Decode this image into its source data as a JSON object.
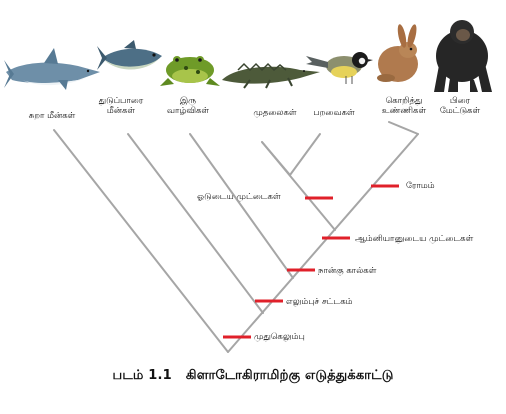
{
  "diagram": {
    "taxa": [
      {
        "id": "shark",
        "label": "சுறா மீன்கள்",
        "icon": "shark-icon"
      },
      {
        "id": "tuna",
        "label": "துடுப்பாரை\nமீன்கள்",
        "icon": "tuna-fish-icon"
      },
      {
        "id": "amphibian",
        "label": "இரு\nவாழ்விகள்",
        "icon": "frog-icon"
      },
      {
        "id": "crocodile",
        "label": "முதலைகள்",
        "icon": "crocodile-icon"
      },
      {
        "id": "bird",
        "label": "பறவைகள்",
        "icon": "bird-icon"
      },
      {
        "id": "mammal",
        "label": "கொறித்து\nஉண்ணிகள்",
        "icon": "rabbit-icon"
      },
      {
        "id": "primate",
        "label": "பிரை\nமேட்டுகள்",
        "icon": "chimpanzee-icon"
      }
    ],
    "traits": [
      {
        "id": "hair",
        "label": "ரோமம்"
      },
      {
        "id": "shelled-eggs",
        "label": "ஓடுடைய முட்டைகள்"
      },
      {
        "id": "amniotic-eggs",
        "label": "ஆம்னியானுடைய முட்டைகள்"
      },
      {
        "id": "four-limbs",
        "label": "நான்கு கால்கள்"
      },
      {
        "id": "skeleton",
        "label": "எலும்புச் சட்டகம்"
      },
      {
        "id": "backbone",
        "label": "முதுகெலும்பு"
      }
    ],
    "colors": {
      "branch": "#a6a6a6",
      "marker": "#e0202a"
    }
  },
  "caption": {
    "number": "படம் 1.1",
    "title": "கிளாடோகிராமிற்கு எடுத்துக்காட்டு"
  }
}
